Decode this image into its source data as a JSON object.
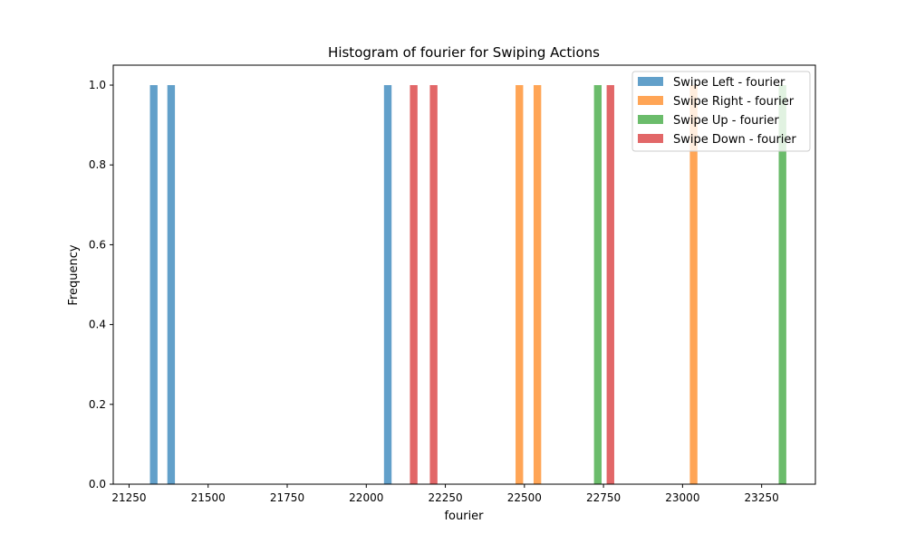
{
  "chart_data": {
    "type": "bar",
    "title": "Histogram of fourier for Swiping Actions",
    "xlabel": "fourier",
    "ylabel": "Frequency",
    "xlim": [
      21200,
      23420
    ],
    "ylim": [
      0,
      1.05
    ],
    "xticks": [
      "21250",
      "21500",
      "21750",
      "22000",
      "22250",
      "22500",
      "22750",
      "23000",
      "23250"
    ],
    "xtick_values": [
      21250,
      21500,
      21750,
      22000,
      22250,
      22500,
      22750,
      23000,
      23250
    ],
    "yticks": [
      "0.0",
      "0.2",
      "0.4",
      "0.6",
      "0.8",
      "1.0"
    ],
    "ytick_values": [
      0,
      0.2,
      0.4,
      0.6,
      0.8,
      1.0
    ],
    "bin_width": 24,
    "legend_position": "upper right",
    "series": [
      {
        "name": "Swipe Left - fourier",
        "color": "#1f77b4",
        "bins": [
          {
            "x": 21328,
            "value": 1
          },
          {
            "x": 21383,
            "value": 1
          },
          {
            "x": 22068,
            "value": 1
          }
        ]
      },
      {
        "name": "Swipe Right - fourier",
        "color": "#ff7f0e",
        "bins": [
          {
            "x": 22484,
            "value": 1
          },
          {
            "x": 22541,
            "value": 1
          },
          {
            "x": 23035,
            "value": 1
          }
        ]
      },
      {
        "name": "Swipe Up - fourier",
        "color": "#2ca02c",
        "bins": [
          {
            "x": 22732,
            "value": 1
          },
          {
            "x": 23316,
            "value": 1
          }
        ]
      },
      {
        "name": "Swipe Down - fourier",
        "color": "#d62728",
        "bins": [
          {
            "x": 22150,
            "value": 1
          },
          {
            "x": 22213,
            "value": 1
          },
          {
            "x": 22772,
            "value": 1
          }
        ]
      }
    ]
  }
}
